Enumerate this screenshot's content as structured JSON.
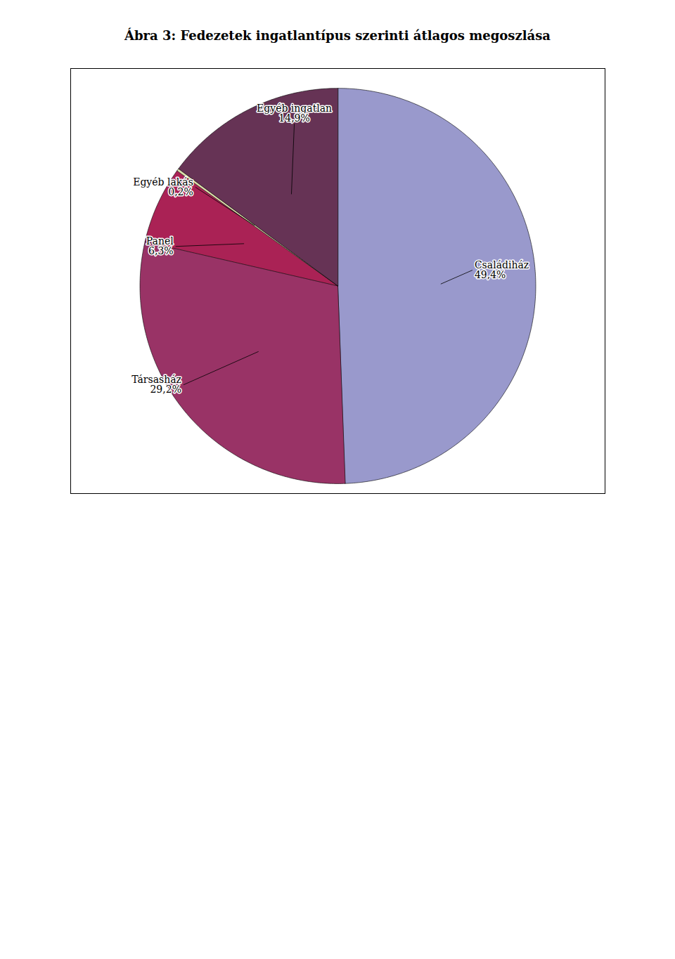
{
  "chart_data": {
    "type": "pie",
    "title": "Ábra 3: Fedezetek ingatlantípus szerinti átlagos megoszlása",
    "categories": [
      "Családiház",
      "Társasház",
      "Panel",
      "Egyéb lakás",
      "Egyéb ingatlan"
    ],
    "values": [
      49.4,
      29.2,
      6.3,
      0.2,
      14.9
    ],
    "value_labels": [
      "49,4%",
      "29,2%",
      "6,3%",
      "0,2%",
      "14,9%"
    ],
    "colors": [
      "#9999cc",
      "#993366",
      "#aa2255",
      "#ddddaa",
      "#663355"
    ],
    "data_labels": true
  }
}
